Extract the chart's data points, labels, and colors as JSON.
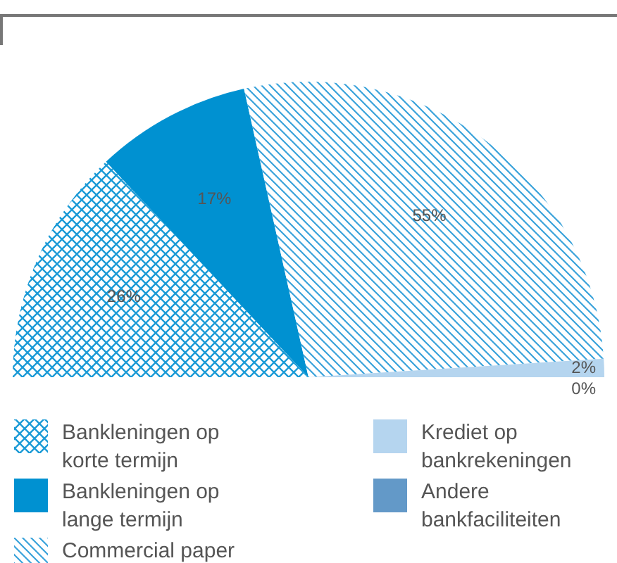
{
  "chart_data": {
    "type": "pie",
    "categories": [
      "Bankleningen op korte termijn",
      "Bankleningen op lange termijn",
      "Commercial paper",
      "Krediet op bankrekeningen",
      "Andere bankfaciliteiten"
    ],
    "values": [
      26,
      17,
      55,
      2,
      0
    ],
    "value_labels": [
      "26%",
      "17%",
      "55%",
      "2%",
      "0%"
    ],
    "colors": [
      "#1a9ad6",
      "#0091d1",
      "#3aa3db",
      "#b5d5ef",
      "#6399c8"
    ],
    "legend": "bottom"
  }
}
